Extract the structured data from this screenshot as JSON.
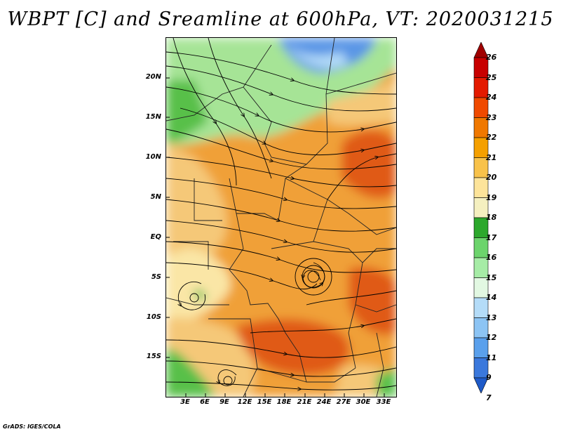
{
  "title": "WBPT [C] and Sreamline at 600hPa, VT: 2020031215",
  "credit": "GrADS: IGES/COLA",
  "lat_labels": [
    "20N",
    "15N",
    "10N",
    "5N",
    "EQ",
    "5S",
    "10S",
    "15S"
  ],
  "lon_labels": [
    "3E",
    "6E",
    "9E",
    "12E",
    "15E",
    "18E",
    "21E",
    "24E",
    "27E",
    "30E",
    "33E"
  ],
  "colorbar": {
    "labels": [
      "26",
      "25",
      "24",
      "23",
      "22",
      "21",
      "20",
      "19",
      "18",
      "17",
      "16",
      "15",
      "14",
      "13",
      "12",
      "11",
      "9",
      "7"
    ],
    "colors": [
      "#a00000",
      "#c80000",
      "#e41a00",
      "#f04a00",
      "#f07800",
      "#f5a000",
      "#f8c24a",
      "#fde49a",
      "#f5f0c0",
      "#2ca82c",
      "#6cd46c",
      "#a6eca6",
      "#e2f8e2",
      "#b4dcf8",
      "#8cc4f4",
      "#5aa0ec",
      "#3a78dc",
      "#1e5ac8"
    ]
  },
  "map_colors": {
    "orange_deep": "#e05a14",
    "orange": "#f0a038",
    "tan": "#f5c878",
    "pale_yellow": "#fae6a6",
    "green_light": "#a6e496",
    "green": "#58c048",
    "blue": "#5a96e6",
    "blue_light": "#b4dcf8"
  }
}
